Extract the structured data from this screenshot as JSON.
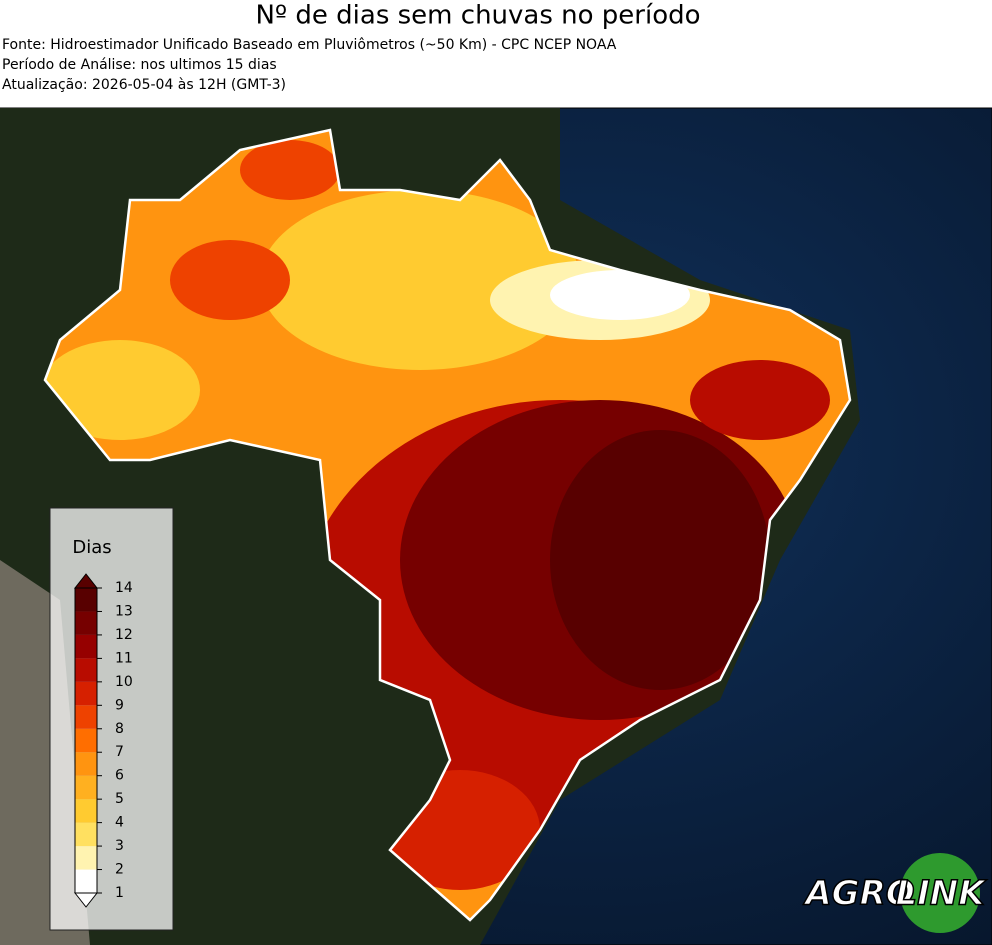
{
  "header": {
    "title": "Nº de dias sem chuvas no período",
    "lines": [
      "Fonte: Hidroestimador Unificado Baseado em Pluviômetros (~50 Km) - CPC NCEP NOAA",
      "Período de Análise: nos ultimos 15 dias",
      "Atualização: 2026-05-04 às 12H (GMT-3)"
    ]
  },
  "legend": {
    "title": "Dias",
    "ticks": [
      1,
      2,
      3,
      4,
      5,
      6,
      7,
      8,
      9,
      10,
      11,
      12,
      13,
      14
    ],
    "colors": [
      "#ffffff",
      "#fff3b0",
      "#ffe060",
      "#ffcb30",
      "#ffb020",
      "#ff9410",
      "#ff6e00",
      "#ee4200",
      "#d62000",
      "#b80c00",
      "#960000",
      "#760000",
      "#580000"
    ]
  },
  "logo": {
    "left": "AGRO",
    "right": "LINK"
  }
}
